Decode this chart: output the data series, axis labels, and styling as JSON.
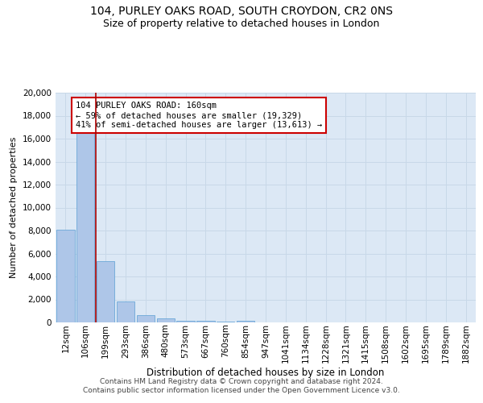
{
  "title_line1": "104, PURLEY OAKS ROAD, SOUTH CROYDON, CR2 0NS",
  "title_line2": "Size of property relative to detached houses in London",
  "xlabel": "Distribution of detached houses by size in London",
  "ylabel": "Number of detached properties",
  "categories": [
    "12sqm",
    "106sqm",
    "199sqm",
    "293sqm",
    "386sqm",
    "480sqm",
    "573sqm",
    "667sqm",
    "760sqm",
    "854sqm",
    "947sqm",
    "1041sqm",
    "1134sqm",
    "1228sqm",
    "1321sqm",
    "1415sqm",
    "1508sqm",
    "1602sqm",
    "1695sqm",
    "1789sqm",
    "1882sqm"
  ],
  "bar_heights": [
    8100,
    16600,
    5300,
    1800,
    650,
    320,
    160,
    110,
    90,
    130,
    0,
    0,
    0,
    0,
    0,
    0,
    0,
    0,
    0,
    0,
    0
  ],
  "bar_color": "#aec6e8",
  "bar_edge_color": "#5a9fd4",
  "grid_color": "#c8d8e8",
  "background_color": "#dce8f5",
  "vline_color": "#aa0000",
  "vline_x": 1.5,
  "annotation_text": "104 PURLEY OAKS ROAD: 160sqm\n← 59% of detached houses are smaller (19,329)\n41% of semi-detached houses are larger (13,613) →",
  "annotation_box_color": "#ffffff",
  "annotation_box_edge_color": "#cc0000",
  "ylim_max": 20000,
  "yticks": [
    0,
    2000,
    4000,
    6000,
    8000,
    10000,
    12000,
    14000,
    16000,
    18000,
    20000
  ],
  "footer_line1": "Contains HM Land Registry data © Crown copyright and database right 2024.",
  "footer_line2": "Contains public sector information licensed under the Open Government Licence v3.0.",
  "title_fontsize": 10,
  "subtitle_fontsize": 9,
  "ylabel_fontsize": 8,
  "xlabel_fontsize": 8.5,
  "tick_fontsize": 7.5,
  "annotation_fontsize": 7.5,
  "footer_fontsize": 6.5
}
